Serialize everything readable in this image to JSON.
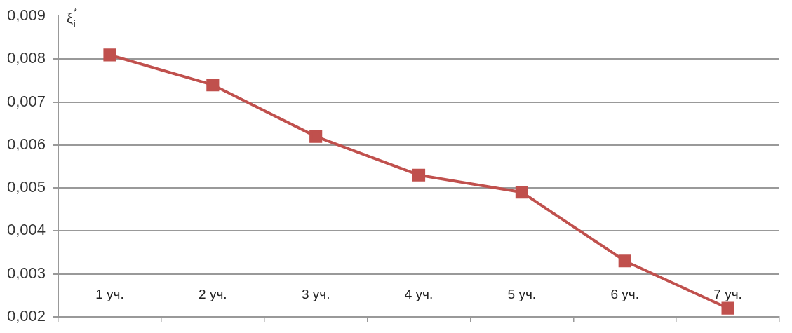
{
  "chart_data": {
    "type": "line",
    "ylabel": "ξ$^{*}$$_{i}$",
    "categories": [
      "1 уч.",
      "2 уч.",
      "3 уч.",
      "4 уч.",
      "5 уч.",
      "6 уч.",
      "7 уч."
    ],
    "series": [
      {
        "color": "#c0504d",
        "values": [
          0.0081,
          0.0074,
          0.0062,
          0.0053,
          0.0049,
          0.0033,
          0.0022
        ]
      }
    ],
    "ylim": [
      0.002,
      0.009
    ],
    "yticks": [
      {
        "value": 0.002,
        "label": "0,002"
      },
      {
        "value": 0.003,
        "label": "0,003"
      },
      {
        "value": 0.004,
        "label": "0,004"
      },
      {
        "value": 0.005,
        "label": "0,005"
      },
      {
        "value": 0.006,
        "label": "0,006"
      },
      {
        "value": 0.007,
        "label": "0,007"
      },
      {
        "value": 0.008,
        "label": "0,008"
      },
      {
        "value": 0.009,
        "label": "0,009"
      }
    ],
    "grid": "y",
    "legend": false,
    "marker": "square",
    "line_style": "solid"
  }
}
